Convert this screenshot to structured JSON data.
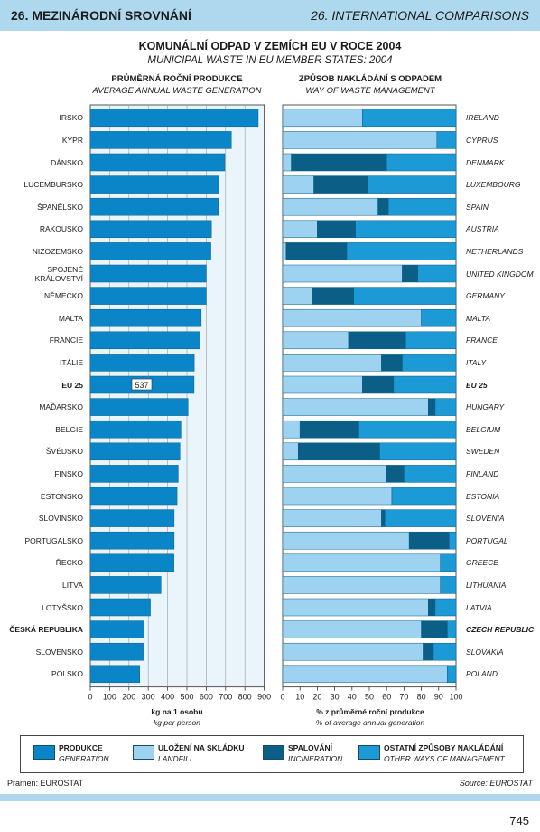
{
  "header": {
    "left": "26. MEZINÁRODNÍ SROVNÁNÍ",
    "right": "26. INTERNATIONAL COMPARISONS"
  },
  "title_cz": "KOMUNÁLNÍ ODPAD V ZEMÍCH EU V ROCE 2004",
  "title_en": "MUNICIPAL WASTE IN EU MEMBER STATES: 2004",
  "left_panel": {
    "title_cz": "PRŮMĚRNÁ ROČNÍ PRODUKCE",
    "title_en": "AVERAGE ANNUAL WASTE GENERATION",
    "xlabel_cz": "kg na 1 osobu",
    "xlabel_en": "kg per person"
  },
  "right_panel": {
    "title_cz": "ZPŮSOB NAKLÁDÁNÍ S ODPADEM",
    "title_en": "WAY OF WASTE MANAGEMENT",
    "xlabel_cz": "% z průměrné roční produkce",
    "xlabel_en": "% of average annual generation"
  },
  "legend": [
    {
      "cz": "PRODUKCE",
      "en": "GENERATION",
      "color": "#0a86c8"
    },
    {
      "cz": "ULOŽENÍ NA SKLÁDKU",
      "en": "LANDFILL",
      "color": "#9dd3f0"
    },
    {
      "cz": "SPALOVÁNÍ",
      "en": "INCINERATION",
      "color": "#0b5f86"
    },
    {
      "cz": "OSTATNÍ ZPŮSOBY NAKLÁDÁNÍ",
      "en": "OTHER WAYS OF MANAGEMENT",
      "color": "#1c9ad6"
    }
  ],
  "source_cz": "Pramen: EUROSTAT",
  "source_en": "Source: EUROSTAT",
  "page_number": "745",
  "chart_data": [
    {
      "type": "bar",
      "orientation": "horizontal",
      "xlim": [
        0,
        900
      ],
      "xticks": [
        "0",
        "100",
        "200",
        "300",
        "400",
        "500",
        "600",
        "700",
        "800",
        "900"
      ],
      "highlight_label": "537",
      "categories": [
        "IRSKO",
        "KYPR",
        "DÁNSKO",
        "LUCEMBURSKO",
        "ŠPANĚLSKO",
        "RAKOUSKO",
        "NIZOZEMSKO",
        "SPOJENÉ KRÁLOVSTVÍ",
        "NĚMECKO",
        "MALTA",
        "FRANCIE",
        "ITÁLIE",
        "EU 25",
        "MAĎARSKO",
        "BELGIE",
        "ŠVÉDSKO",
        "FINSKO",
        "ESTONSKO",
        "SLOVINSKO",
        "PORTUGALSKO",
        "ŘECKO",
        "LITVA",
        "LOTYŠSKO",
        "ČESKÁ REPUBLIKA",
        "SLOVENSKO",
        "POLSKO"
      ],
      "values": [
        869,
        730,
        696,
        667,
        662,
        627,
        624,
        600,
        600,
        574,
        567,
        538,
        537,
        506,
        469,
        464,
        455,
        449,
        434,
        434,
        433,
        366,
        311,
        278,
        274,
        256
      ]
    },
    {
      "type": "bar",
      "orientation": "horizontal",
      "stacked": true,
      "xlim": [
        0,
        100
      ],
      "xticks": [
        "0",
        "10",
        "20",
        "30",
        "40",
        "50",
        "60",
        "70",
        "80",
        "90",
        "100"
      ],
      "categories": [
        "IRELAND",
        "CYPRUS",
        "DENMARK",
        "LUXEMBOURG",
        "SPAIN",
        "AUSTRIA",
        "NETHERLANDS",
        "UNITED KINGDOM",
        "GERMANY",
        "MALTA",
        "FRANCE",
        "ITALY",
        "EU 25",
        "HUNGARY",
        "BELGIUM",
        "SWEDEN",
        "FINLAND",
        "ESTONIA",
        "SLOVENIA",
        "PORTUGAL",
        "GREECE",
        "LITHUANIA",
        "LATVIA",
        "CZECH REPUBLIC",
        "SLOVAKIA",
        "POLAND"
      ],
      "series": [
        {
          "name": "ULOŽENÍ NA SKLÁDKU",
          "values": [
            46,
            89,
            5,
            18,
            55,
            20,
            2,
            69,
            17,
            80,
            38,
            57,
            46,
            84,
            10,
            9,
            60,
            63,
            57,
            73,
            91,
            91,
            84,
            80,
            81,
            95
          ]
        },
        {
          "name": "SPALOVÁNÍ",
          "values": [
            0,
            0,
            55,
            31,
            6,
            22,
            35,
            9,
            24,
            0,
            33,
            12,
            18,
            4,
            34,
            47,
            10,
            0,
            2,
            23,
            0,
            0,
            4,
            15,
            6,
            0
          ]
        },
        {
          "name": "OSTATNÍ ZPŮSOBY NAKLÁDÁNÍ",
          "values": [
            54,
            11,
            40,
            51,
            39,
            58,
            63,
            22,
            59,
            20,
            29,
            31,
            36,
            12,
            56,
            44,
            30,
            37,
            41,
            4,
            9,
            9,
            12,
            5,
            13,
            5
          ]
        }
      ]
    }
  ]
}
